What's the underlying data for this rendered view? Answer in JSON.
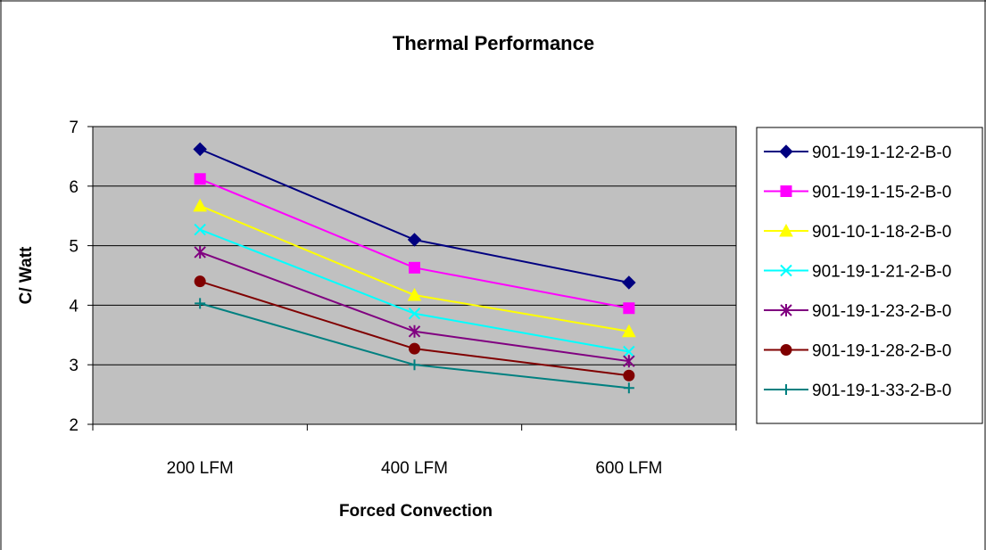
{
  "chart_data": {
    "type": "line",
    "title": "Thermal Performance",
    "xlabel": "Forced Convection",
    "ylabel": "C/ Watt",
    "categories": [
      "200 LFM",
      "400 LFM",
      "600 LFM"
    ],
    "ylim": [
      2,
      7
    ],
    "yticks": [
      2,
      3,
      4,
      5,
      6,
      7
    ],
    "grid": true,
    "legend": "right",
    "plot_background": "#c0c0c0",
    "series": [
      {
        "name": "901-19-1-12-2-B-0",
        "values": [
          6.62,
          5.1,
          4.38
        ],
        "color": "#000080",
        "marker": "diamond"
      },
      {
        "name": "901-19-1-15-2-B-0",
        "values": [
          6.12,
          4.63,
          3.95
        ],
        "color": "#ff00ff",
        "marker": "square"
      },
      {
        "name": "901-10-1-18-2-B-0",
        "values": [
          5.67,
          4.17,
          3.56
        ],
        "color": "#ffff00",
        "marker": "triangle"
      },
      {
        "name": "901-19-1-21-2-B-0",
        "values": [
          5.27,
          3.86,
          3.22
        ],
        "color": "#00ffff",
        "marker": "x"
      },
      {
        "name": "901-19-1-23-2-B-0",
        "values": [
          4.89,
          3.56,
          3.06
        ],
        "color": "#800080",
        "marker": "star"
      },
      {
        "name": "901-19-1-28-2-B-0",
        "values": [
          4.4,
          3.27,
          2.82
        ],
        "color": "#800000",
        "marker": "circle"
      },
      {
        "name": "901-19-1-33-2-B-0",
        "values": [
          4.03,
          3.0,
          2.61
        ],
        "color": "#008080",
        "marker": "plus"
      }
    ]
  }
}
